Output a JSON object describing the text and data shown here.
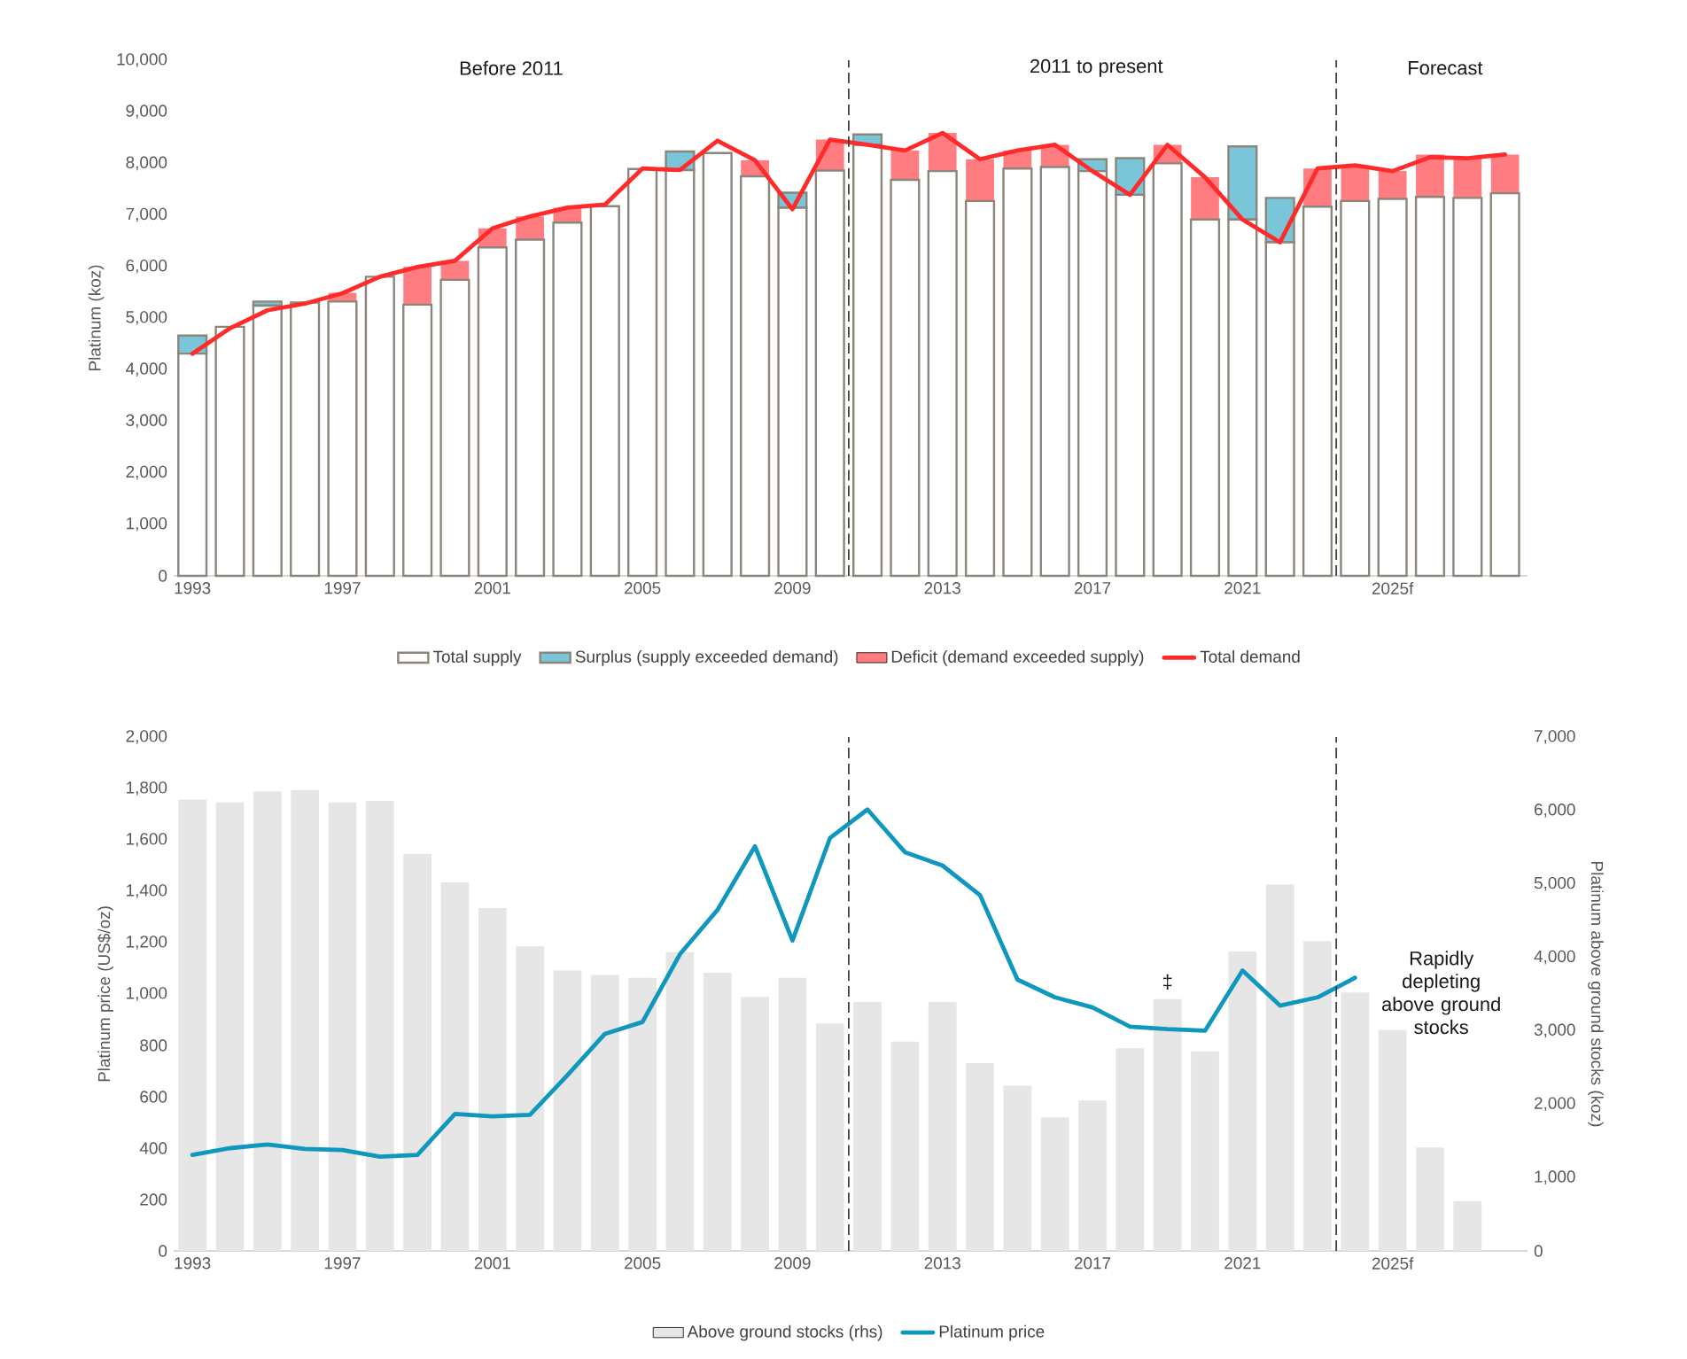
{
  "chart_data": [
    {
      "type": "bar",
      "stacked": true,
      "ylabel": "Platinum (koz)",
      "x": [
        1993,
        1994,
        1995,
        1996,
        1997,
        1998,
        1999,
        2000,
        2001,
        2002,
        2003,
        2004,
        2005,
        2006,
        2007,
        2008,
        2009,
        2010,
        2011,
        2012,
        2013,
        2014,
        2015,
        2016,
        2017,
        2018,
        2019,
        2020,
        2021,
        2022,
        2023,
        2024,
        2025,
        2026,
        2027,
        2028
      ],
      "xlim": [
        1992.5,
        2028.6
      ],
      "xticks": [
        1993,
        1997,
        2001,
        2005,
        2009,
        2013,
        2017,
        2021,
        {
          "value": 2025,
          "label": "2025f"
        }
      ],
      "ylim": [
        0,
        10000
      ],
      "yticks": [
        0,
        {
          "value": 1000,
          "label": "1,000"
        },
        {
          "value": 2000,
          "label": "2,000"
        },
        {
          "value": 3000,
          "label": "3,000"
        },
        {
          "value": 4000,
          "label": "4,000"
        },
        {
          "value": 5000,
          "label": "5,000"
        },
        {
          "value": 6000,
          "label": "6,000"
        },
        {
          "value": 7000,
          "label": "7,000"
        },
        {
          "value": 8000,
          "label": "8,000"
        },
        {
          "value": 9000,
          "label": "9,000"
        },
        {
          "value": 10000,
          "label": "10,000"
        }
      ],
      "legend": "bottom",
      "series": [
        {
          "name": "Total supply",
          "color": "#8c857b",
          "values": [
            4310,
            4830,
            5240,
            5300,
            5320,
            5800,
            5260,
            5740,
            6370,
            6520,
            6850,
            7170,
            7890,
            7870,
            8200,
            7750,
            7140,
            7860,
            8360,
            7680,
            7850,
            7270,
            7900,
            7930,
            7850,
            7390,
            8000,
            6910,
            6910,
            6470,
            7160,
            7270,
            7310,
            7350,
            7330,
            7420
          ]
        },
        {
          "name": "Surplus (supply exceeded demand)",
          "color": "#7ac5d8",
          "values": [
            350,
            0,
            80,
            0,
            0,
            0,
            0,
            0,
            0,
            0,
            0,
            0,
            0,
            360,
            0,
            0,
            290,
            0,
            200,
            0,
            0,
            0,
            0,
            0,
            230,
            710,
            0,
            0,
            1420,
            860,
            0,
            0,
            0,
            0,
            0,
            0
          ]
        },
        {
          "name": "Deficit (demand exceeded supply)",
          "color": "#ff7c80",
          "values": [
            0,
            0,
            0,
            0,
            170,
            0,
            730,
            370,
            370,
            450,
            290,
            0,
            0,
            0,
            0,
            310,
            0,
            600,
            0,
            570,
            740,
            810,
            350,
            430,
            0,
            0,
            360,
            820,
            0,
            0,
            740,
            690,
            540,
            820,
            770,
            750
          ]
        },
        {
          "name": "Total demand",
          "type": "line",
          "color": "#ff2a2a",
          "values": [
            4310,
            4800,
            5150,
            5280,
            5480,
            5800,
            5990,
            6110,
            6740,
            6970,
            7140,
            7200,
            7900,
            7870,
            8440,
            8060,
            7110,
            8460,
            8360,
            8250,
            8590,
            8080,
            8250,
            8360,
            7850,
            7390,
            8360,
            7730,
            6910,
            6470,
            7900,
            7960,
            7850,
            8120,
            8100,
            8170
          ]
        }
      ],
      "ref_lines": [
        {
          "axis": "x",
          "value": 2010.5,
          "color": "#404040",
          "line_style": "dashed"
        },
        {
          "axis": "x",
          "value": 2023.5,
          "color": "#404040",
          "line_style": "dashed"
        }
      ],
      "annotations": [
        "Before 2011",
        "2011 to present",
        "Forecast"
      ]
    },
    {
      "type": "line",
      "ylabel": "Platinum price (US$/oz)",
      "y2label": "Platinum above ground stocks (koz)",
      "x": [
        1993,
        1994,
        1995,
        1996,
        1997,
        1998,
        1999,
        2000,
        2001,
        2002,
        2003,
        2004,
        2005,
        2006,
        2007,
        2008,
        2009,
        2010,
        2011,
        2012,
        2013,
        2014,
        2015,
        2016,
        2017,
        2018,
        2019,
        2020,
        2021,
        2022,
        2023,
        2024,
        2025,
        2026,
        2027
      ],
      "xlim": [
        1992.5,
        2028.6
      ],
      "xticks": [
        1993,
        1997,
        2001,
        2005,
        2009,
        2013,
        2017,
        2021,
        {
          "value": 2025,
          "label": "2025f"
        }
      ],
      "ylim": [
        0,
        2000
      ],
      "yticks": [
        0,
        200,
        400,
        600,
        800,
        {
          "value": 1000,
          "label": "1,000"
        },
        {
          "value": 1200,
          "label": "1,200"
        },
        {
          "value": 1400,
          "label": "1,400"
        },
        {
          "value": 1600,
          "label": "1,600"
        },
        {
          "value": 1800,
          "label": "1,800"
        },
        {
          "value": 2000,
          "label": "2,000"
        }
      ],
      "y2lim": [
        0,
        7000
      ],
      "y2ticks": [
        0,
        {
          "value": 1000,
          "label": "1,000"
        },
        {
          "value": 2000,
          "label": "2,000"
        },
        {
          "value": 3000,
          "label": "3,000"
        },
        {
          "value": 4000,
          "label": "4,000"
        },
        {
          "value": 5000,
          "label": "5,000"
        },
        {
          "value": 6000,
          "label": "6,000"
        },
        {
          "value": 7000,
          "label": "7,000"
        }
      ],
      "legend": "bottom",
      "series": [
        {
          "name": "Above ground stocks (rhs)",
          "type": "bar",
          "axis": "y2",
          "color": "#e6e6e6",
          "values": [
            6150,
            6110,
            6260,
            6280,
            6110,
            6130,
            5410,
            5020,
            4670,
            4150,
            3820,
            3760,
            3720,
            4070,
            3790,
            3460,
            3720,
            3100,
            3390,
            2850,
            3390,
            2560,
            2250,
            1820,
            2050,
            2760,
            3430,
            2720,
            4080,
            4990,
            4220,
            3520,
            3010,
            1410,
            680
          ]
        },
        {
          "name": "Platinum price",
          "color": "#0f97bd",
          "values": [
            374,
            400,
            414,
            397,
            393,
            367,
            374,
            533,
            524,
            530,
            684,
            845,
            891,
            1155,
            1327,
            1575,
            1208,
            1607,
            1718,
            1552,
            1500,
            1385,
            1056,
            987,
            948,
            873,
            863,
            857,
            1091,
            955,
            987,
            1063,
            null,
            null,
            null
          ]
        }
      ],
      "ref_lines": [
        {
          "axis": "x",
          "value": 2010.5,
          "color": "#404040",
          "line_style": "dashed"
        },
        {
          "axis": "x",
          "value": 2023.5,
          "color": "#404040",
          "line_style": "dashed"
        }
      ],
      "annotations": [
        "‡",
        "Rapidly depleting above ground stocks"
      ]
    }
  ]
}
